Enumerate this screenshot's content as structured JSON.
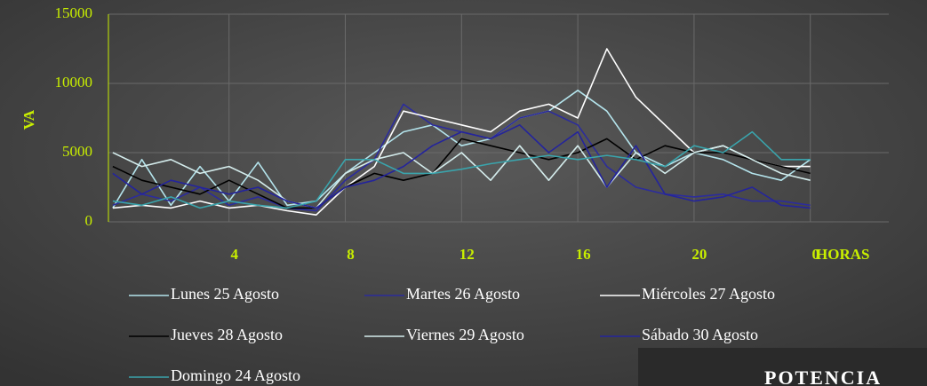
{
  "chart_data": {
    "type": "line",
    "y_label": "VA",
    "x_label": "HORAS",
    "annotation": "POTENCIA",
    "x": [
      0,
      1,
      2,
      3,
      4,
      5,
      6,
      7,
      8,
      9,
      10,
      11,
      12,
      13,
      14,
      15,
      16,
      17,
      18,
      19,
      20,
      21,
      22,
      23,
      24
    ],
    "xlim": [
      -0.15,
      26.7
    ],
    "xticks": [
      4,
      8,
      12,
      16,
      20,
      {
        "value": 24,
        "label": "0"
      }
    ],
    "ylim": [
      0,
      15000
    ],
    "yticks": [
      0,
      5000,
      10000,
      15000
    ],
    "grid": true,
    "legend": "bottom",
    "series": [
      {
        "name": "Lunes 25 Agosto",
        "color": "#b4e4ec",
        "values": [
          1000,
          4500,
          1200,
          4000,
          1500,
          4300,
          1200,
          1500,
          3500,
          5000,
          6500,
          7000,
          5500,
          6000,
          7500,
          8000,
          9500,
          8000,
          5000,
          4000,
          5000,
          4500,
          3500,
          3000,
          4500
        ]
      },
      {
        "name": "Martes 26 Agosto",
        "color": "#2c2c9c",
        "values": [
          1200,
          2000,
          1500,
          2500,
          1200,
          1800,
          1000,
          800,
          3000,
          4500,
          8500,
          7000,
          6500,
          6000,
          7500,
          8000,
          7000,
          4000,
          2500,
          2000,
          1800,
          2000,
          1500,
          1500,
          1200
        ]
      },
      {
        "name": "Miércoles 27 Agosto",
        "color": "#ffffff",
        "values": [
          1000,
          1200,
          1000,
          1500,
          1000,
          1200,
          800,
          500,
          2500,
          4000,
          8000,
          7500,
          7000,
          6500,
          8000,
          8500,
          7500,
          12500,
          9000,
          7000,
          5000,
          5500,
          4500,
          4000,
          4000
        ]
      },
      {
        "name": "Jueves 28 Agosto",
        "color": "#000000",
        "values": [
          4000,
          3000,
          2500,
          2000,
          3000,
          2000,
          1000,
          1000,
          2500,
          3500,
          3000,
          3500,
          6000,
          5500,
          5000,
          4500,
          5000,
          6000,
          4500,
          5500,
          5000,
          5000,
          4500,
          4000,
          3500
        ]
      },
      {
        "name": "Viernes 29 Agosto",
        "color": "#d4ecec",
        "values": [
          5000,
          4000,
          4500,
          3500,
          4000,
          3000,
          1500,
          1000,
          3500,
          4500,
          5000,
          3500,
          5000,
          3000,
          5500,
          3000,
          5500,
          2500,
          5000,
          3500,
          5000,
          5500,
          4500,
          3500,
          3000
        ]
      },
      {
        "name": "Sábado 30 Agosto",
        "color": "#24249c",
        "values": [
          3500,
          2000,
          3000,
          2500,
          2000,
          2500,
          1500,
          1000,
          2500,
          3000,
          4000,
          5500,
          6500,
          6000,
          7000,
          5000,
          6500,
          2500,
          5500,
          2000,
          1500,
          1800,
          2500,
          1200,
          1000
        ]
      },
      {
        "name": "Domingo 24 Agosto",
        "color": "#3aa4ac",
        "values": [
          1500,
          1200,
          1800,
          1000,
          1500,
          1200,
          1000,
          1500,
          4500,
          4500,
          3500,
          3500,
          3800,
          4200,
          4500,
          4800,
          4500,
          4800,
          4500,
          4000,
          5500,
          5000,
          6500,
          4500,
          4500
        ]
      }
    ]
  }
}
